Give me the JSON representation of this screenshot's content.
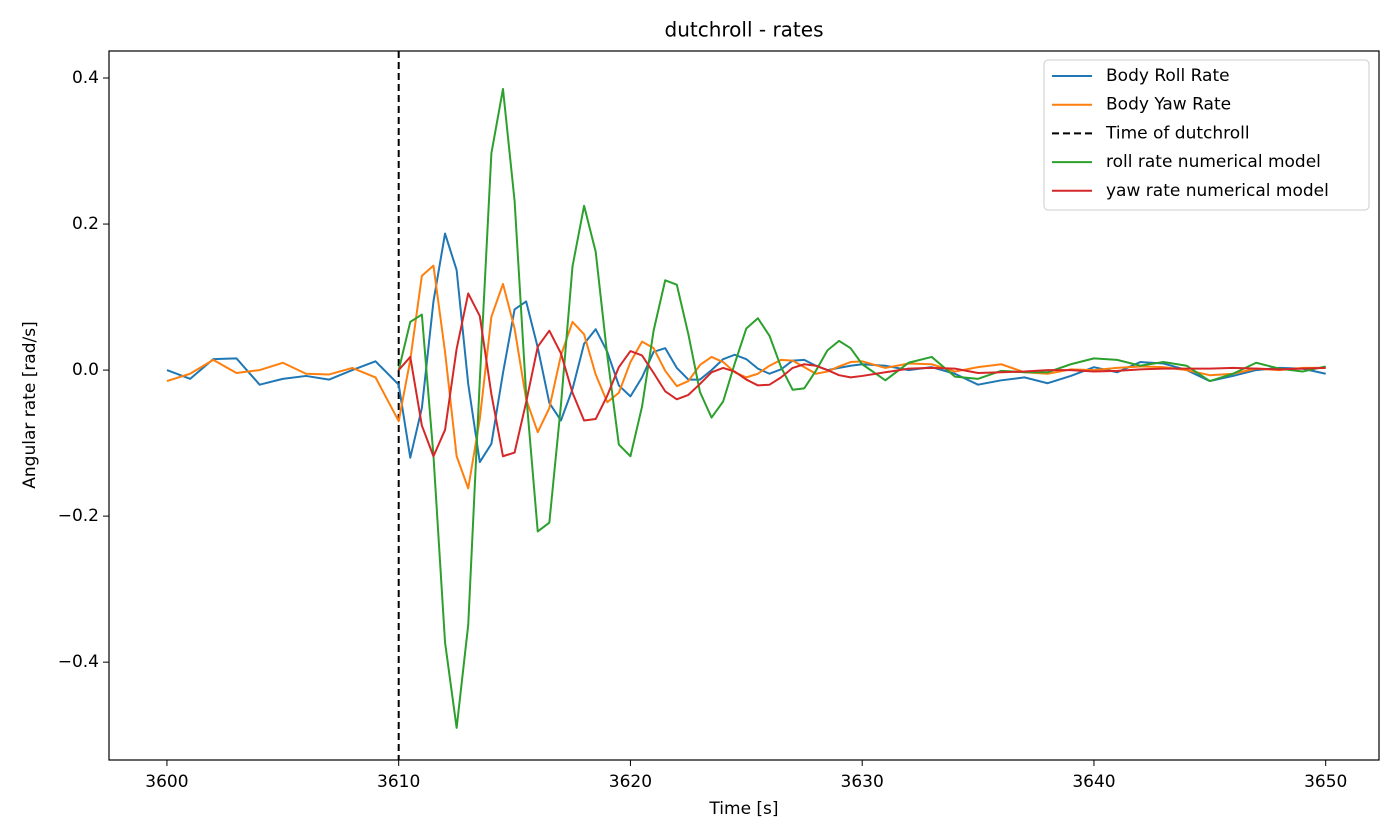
{
  "chart_data": {
    "type": "line",
    "title": "dutchroll - rates",
    "xlabel": "Time [s]",
    "ylabel": "Angular rate [rad/s]",
    "x": [
      3600,
      3601,
      3602,
      3603,
      3604,
      3605,
      3606,
      3607,
      3608,
      3609,
      3610,
      3610.5,
      3611,
      3611.5,
      3612,
      3612.5,
      3613,
      3613.5,
      3614,
      3614.5,
      3615,
      3615.5,
      3616,
      3616.5,
      3617,
      3617.5,
      3618,
      3618.5,
      3619,
      3619.5,
      3620,
      3620.5,
      3621,
      3621.5,
      3622,
      3622.5,
      3623,
      3623.5,
      3624,
      3624.5,
      3625,
      3625.5,
      3626,
      3626.5,
      3627,
      3627.5,
      3628,
      3628.5,
      3629,
      3629.5,
      3630,
      3631,
      3632,
      3633,
      3634,
      3635,
      3636,
      3637,
      3638,
      3639,
      3640,
      3641,
      3642,
      3643,
      3644,
      3645,
      3646,
      3647,
      3648,
      3649,
      3650
    ],
    "series": [
      {
        "name": "Body Roll Rate",
        "color": "#1f77b4",
        "values": [
          0,
          -0.012,
          0.015,
          0.016,
          -0.02,
          -0.012,
          -0.008,
          -0.013,
          0,
          0.012,
          -0.02,
          -0.12,
          -0.052,
          0.094,
          0.187,
          0.137,
          -0.019,
          -0.126,
          -0.101,
          -0.004,
          0.083,
          0.094,
          0.031,
          -0.045,
          -0.069,
          -0.026,
          0.036,
          0.056,
          0.025,
          -0.021,
          -0.036,
          -0.01,
          0.025,
          0.03,
          0.003,
          -0.013,
          -0.013,
          0,
          0.015,
          0.021,
          0.015,
          0.002,
          -0.005,
          0.001,
          0.013,
          0.014,
          0.006,
          0,
          0.003,
          0.006,
          0.008,
          0.006,
          0,
          0.004,
          -0.005,
          -0.02,
          -0.014,
          -0.01,
          -0.018,
          -0.008,
          0.004,
          -0.003,
          0.011,
          0.009,
          0,
          -0.015,
          -0.008,
          0,
          0.003,
          0.002,
          -0.005
        ]
      },
      {
        "name": "Body Yaw Rate",
        "color": "#ff7f0e",
        "values": [
          -0.015,
          -0.005,
          0.014,
          -0.004,
          0,
          0.01,
          -0.005,
          -0.006,
          0.003,
          -0.01,
          -0.07,
          0.014,
          0.129,
          0.143,
          0.025,
          -0.118,
          -0.162,
          -0.067,
          0.073,
          0.118,
          0.057,
          -0.04,
          -0.085,
          -0.052,
          0.02,
          0.066,
          0.049,
          -0.006,
          -0.044,
          -0.031,
          0.011,
          0.039,
          0.03,
          -0.001,
          -0.022,
          -0.015,
          0.007,
          0.018,
          0.011,
          -0.003,
          -0.01,
          -0.005,
          0.006,
          0.014,
          0.013,
          0.004,
          -0.005,
          -0.002,
          0.005,
          0.011,
          0.012,
          0.003,
          0.009,
          0.008,
          -0.002,
          0.004,
          0.008,
          -0.003,
          -0.005,
          0.001,
          0,
          0.003,
          0.005,
          0.004,
          0,
          -0.007,
          -0.005,
          0.002,
          0,
          0.003,
          0.003
        ]
      },
      {
        "name": "roll rate numerical model",
        "color": "#2ca02c",
        "values": [
          null,
          null,
          null,
          null,
          null,
          null,
          null,
          null,
          null,
          null,
          0,
          0.066,
          0.076,
          -0.117,
          -0.373,
          -0.49,
          -0.349,
          -0.014,
          0.297,
          0.385,
          0.232,
          -0.033,
          -0.221,
          -0.209,
          -0.048,
          0.142,
          0.225,
          0.162,
          0.02,
          -0.102,
          -0.118,
          -0.05,
          0.054,
          0.123,
          0.117,
          0.049,
          -0.03,
          -0.065,
          -0.043,
          0.009,
          0.057,
          0.071,
          0.047,
          0.004,
          -0.027,
          -0.025,
          -0.001,
          0.027,
          0.04,
          0.03,
          0.008,
          -0.014,
          0.01,
          0.018,
          -0.009,
          -0.012,
          -0.001,
          -0.003,
          -0.003,
          0.008,
          0.016,
          0.014,
          0.006,
          0.011,
          0.006,
          -0.015,
          -0.005,
          0.01,
          0.002,
          -0.002,
          0.005
        ]
      },
      {
        "name": "yaw rate numerical model",
        "color": "#d62728",
        "values": [
          null,
          null,
          null,
          null,
          null,
          null,
          null,
          null,
          null,
          null,
          0,
          0.018,
          -0.076,
          -0.118,
          -0.082,
          0.029,
          0.105,
          0.074,
          -0.033,
          -0.118,
          -0.113,
          -0.044,
          0.032,
          0.054,
          0.023,
          -0.031,
          -0.069,
          -0.067,
          -0.035,
          0.004,
          0.026,
          0.02,
          -0.004,
          -0.029,
          -0.04,
          -0.034,
          -0.019,
          -0.003,
          0.003,
          -0.002,
          -0.013,
          -0.021,
          -0.02,
          -0.01,
          0.003,
          0.008,
          0.006,
          0,
          -0.007,
          -0.01,
          -0.008,
          -0.003,
          0.002,
          0.003,
          0.002,
          -0.004,
          -0.003,
          -0.002,
          0,
          0,
          -0.002,
          -0.001,
          0.001,
          0.002,
          0.002,
          0.002,
          0.003,
          0.002,
          0.001,
          0.002,
          0.003
        ]
      }
    ],
    "vline": {
      "name": "Time of dutchroll",
      "x": 3610,
      "color": "#000000",
      "dashed": true
    },
    "xlim": [
      3597.5,
      3652.3
    ],
    "xticks": [
      3600,
      3610,
      3620,
      3630,
      3640,
      3650
    ],
    "ylim": [
      -0.534,
      0.437
    ],
    "yticks": [
      {
        "value": -0.4,
        "label": "−0.4"
      },
      {
        "value": -0.2,
        "label": "−0.2"
      },
      {
        "value": 0,
        "label": "0.0"
      },
      0.2,
      0.4
    ],
    "grid": false,
    "legend": "upper right"
  }
}
